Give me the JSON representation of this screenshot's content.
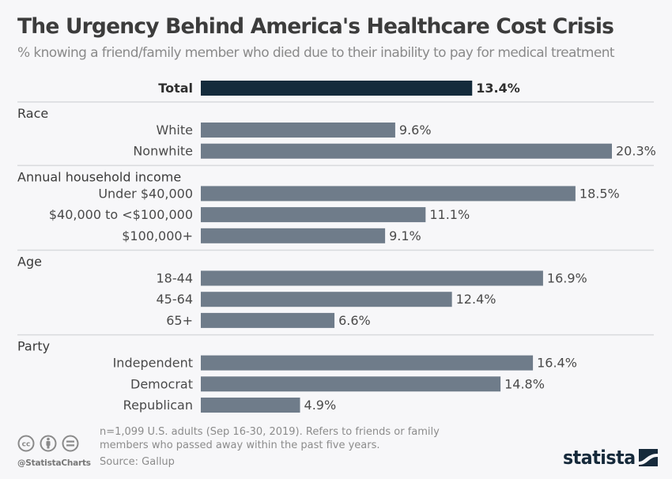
{
  "header": {
    "title": "The Urgency Behind America's Healthcare Cost Crisis",
    "subtitle": "% knowing a friend/family member who died due to their inability to pay for medical treatment"
  },
  "chart_data": {
    "type": "bar",
    "orientation": "horizontal",
    "title": "The Urgency Behind America's Healthcare Cost Crisis",
    "subtitle": "% knowing a friend/family member who died due to their inability to pay for medical treatment",
    "unit": "%",
    "xlim": [
      0,
      20.3
    ],
    "grid": false,
    "colors": {
      "total": "#142b3c",
      "group": "#6f7c8a",
      "separator": "#d8dadd"
    },
    "total": {
      "label": "Total",
      "value": 13.4,
      "display": "13.4%"
    },
    "groups": [
      {
        "name": "Race",
        "items": [
          {
            "label": "White",
            "value": 9.6,
            "display": "9.6%"
          },
          {
            "label": "Nonwhite",
            "value": 20.3,
            "display": "20.3%"
          }
        ]
      },
      {
        "name": "Annual household income",
        "items": [
          {
            "label": "Under $40,000",
            "value": 18.5,
            "display": "18.5%"
          },
          {
            "label": "$40,000 to <$100,000",
            "value": 11.1,
            "display": "11.1%"
          },
          {
            "label": "$100,000+",
            "value": 9.1,
            "display": "9.1%"
          }
        ]
      },
      {
        "name": "Age",
        "items": [
          {
            "label": "18-44",
            "value": 16.9,
            "display": "16.9%"
          },
          {
            "label": "45-64",
            "value": 12.4,
            "display": "12.4%"
          },
          {
            "label": "65+",
            "value": 6.6,
            "display": "6.6%"
          }
        ]
      },
      {
        "name": "Party",
        "items": [
          {
            "label": "Independent",
            "value": 16.4,
            "display": "16.4%"
          },
          {
            "label": "Democrat",
            "value": 14.8,
            "display": "14.8%"
          },
          {
            "label": "Republican",
            "value": 4.9,
            "display": "4.9%"
          }
        ]
      }
    ]
  },
  "footer": {
    "note": "n=1,099 U.S. adults (Sep 16-30, 2019). Refers to friends or family members who passed away within the past five years.",
    "source": "Source: Gallup",
    "handle": "@StatistaCharts",
    "logo": "statista",
    "license_icons": [
      "cc-icon",
      "attribution-icon",
      "no-derivatives-icon"
    ]
  }
}
